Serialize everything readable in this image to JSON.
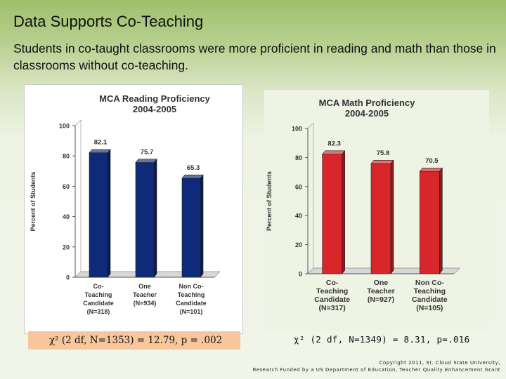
{
  "slide": {
    "title": "Data Supports Co-Teaching",
    "subtitle": "Students in co-taught classrooms were more proficient in reading and math than those in classrooms without co-teaching.",
    "stat_reading": "χ² (2 df, N=1353) = 12.79, p = .002",
    "stat_math": "χ² (2 df, N=1349) = 8.31, p=.016",
    "copyright_line1": "Copyright 2011, St. Cloud State University,",
    "copyright_line2": "Research Funded by a US Department of Education, Teacher Quality Enhancement Grant"
  },
  "chart_data": [
    {
      "type": "bar",
      "title": "MCA Reading Proficiency",
      "subtitle": "2004-2005",
      "ylabel": "Percent of Students",
      "xlabel": "",
      "ylim": [
        0,
        100
      ],
      "yticks": [
        0,
        20,
        40,
        60,
        80,
        100
      ],
      "grid": false,
      "legend": "none",
      "color": "#0f2a78",
      "categories": [
        [
          "Co-",
          "Teaching",
          "Candidate",
          "(N=318)"
        ],
        [
          "One",
          "Teacher",
          "(N=934)"
        ],
        [
          "Non Co-",
          "Teaching",
          "Candidate",
          "(N=101)"
        ]
      ],
      "values": [
        82.1,
        75.7,
        65.3
      ],
      "data_labels": [
        "82.1",
        "75.7",
        "65.3"
      ]
    },
    {
      "type": "bar",
      "title": "MCA Math Proficiency",
      "subtitle": "2004-2005",
      "ylabel": "Percent of Students",
      "xlabel": "",
      "ylim": [
        0,
        100
      ],
      "yticks": [
        0,
        20,
        40,
        60,
        80,
        100
      ],
      "grid": false,
      "legend": "none",
      "color": "#d8262b",
      "categories": [
        [
          "Co-",
          "Teaching",
          "Candidate",
          "(N=317)"
        ],
        [
          "One",
          "Teacher",
          "(N=927)"
        ],
        [
          "Non Co-",
          "Teaching",
          "Candidate",
          "(N=105)"
        ]
      ],
      "values": [
        82.3,
        75.8,
        70.5
      ],
      "data_labels": [
        "82.3",
        "75.8",
        "70.5"
      ]
    }
  ]
}
